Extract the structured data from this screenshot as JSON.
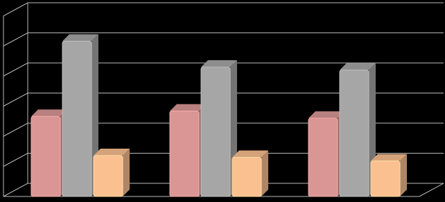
{
  "chart_data": {
    "type": "bar3d",
    "categories": [
      null,
      null,
      null
    ],
    "series": [
      {
        "color": "#d99694",
        "values": [
          2.66,
          2.84,
          2.6
        ]
      },
      {
        "color": "#a6a6a6",
        "values": [
          5.16,
          4.3,
          4.2
        ]
      },
      {
        "color": "#fac090",
        "values": [
          1.36,
          1.3,
          1.18
        ]
      }
    ],
    "ylim": [
      0,
      6
    ],
    "yticks": [
      0,
      1,
      2,
      3,
      4,
      5,
      6
    ],
    "grid": true
  }
}
